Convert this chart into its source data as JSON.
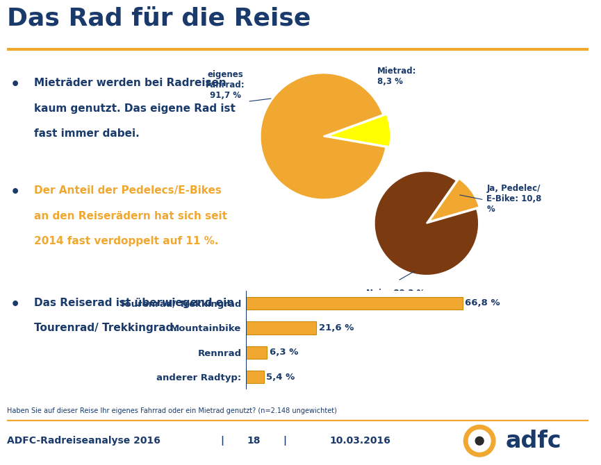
{
  "title": "Das Rad für die Reise",
  "title_color": "#1a3a6b",
  "separator_color": "#f0a830",
  "background_color": "#ffffff",
  "bullet_points": [
    "Mieträder werden bei Radreisen\nkaum genutzt. Das eigene Rad ist\nfast immer dabei.",
    "Der Anteil der Pedelecs/E-Bikes\nan den Reiserädern hat sich seit\n2014 fast verdoppelt auf 11 %.",
    "Das Reiserad ist überwiegend ein\nTourenrad/ Trekkingrad."
  ],
  "bullet_color": "#1a3a6b",
  "highlight_bullet": 1,
  "highlight_color": "#f0a830",
  "pie1_values": [
    91.7,
    8.3
  ],
  "pie1_colors": [
    "#f0a830",
    "#ffff00"
  ],
  "pie1_explode": [
    0.0,
    0.06
  ],
  "pie1_startangle": 20,
  "pie2_values": [
    89.2,
    10.8
  ],
  "pie2_colors": [
    "#7b3a10",
    "#f0a830"
  ],
  "pie2_explode": [
    0.0,
    0.06
  ],
  "pie2_startangle": 55,
  "bar_categories": [
    "Tourenrad/ Trekkingrad",
    "Mountainbike",
    "Rennrad",
    "anderer Radtyp:"
  ],
  "bar_values": [
    66.8,
    21.6,
    6.3,
    5.4
  ],
  "bar_color": "#f0a830",
  "bar_labels": [
    "66,8 %",
    "21,6 %",
    "6,3 %",
    "5,4 %"
  ],
  "footnote": "Haben Sie auf dieser Reise Ihr eigenes Fahrrad oder ein Mietrad genutzt? (n=2.148 ungewichtet)",
  "footer_left": "ADFC-Radreiseanalyse 2016",
  "footer_center": "18",
  "footer_right": "10.03.2016",
  "footer_color": "#1a3a6b",
  "text_color": "#1a3a6b"
}
